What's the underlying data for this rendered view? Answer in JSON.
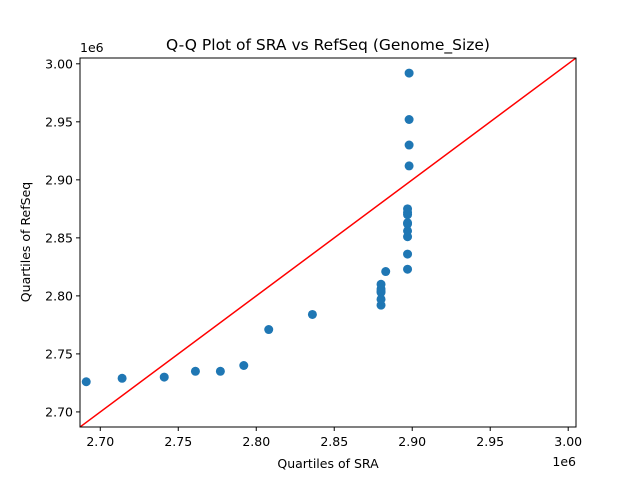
{
  "chart_data": {
    "type": "scatter",
    "title": "Q-Q Plot of SRA vs RefSeq (Genome_Size)",
    "xlabel": "Quartiles of SRA",
    "ylabel": "Quartiles of RefSeq",
    "x_offset_label": "1e6",
    "y_offset_label": "1e6",
    "xlim": [
      2.687,
      3.005
    ],
    "ylim": [
      2.687,
      3.005
    ],
    "x_ticks": [
      2.7,
      2.75,
      2.8,
      2.85,
      2.9,
      2.95,
      3.0
    ],
    "x_tick_labels": [
      "2.70",
      "2.75",
      "2.80",
      "2.85",
      "2.90",
      "2.95",
      "3.00"
    ],
    "y_ticks": [
      2.7,
      2.75,
      2.8,
      2.85,
      2.9,
      2.95,
      3.0
    ],
    "y_tick_labels": [
      "2.70",
      "2.75",
      "2.80",
      "2.85",
      "2.90",
      "2.95",
      "3.00"
    ],
    "grid": false,
    "marker_color": "#1f77b4",
    "reference_line": {
      "color": "#ff0000",
      "from": [
        2.687,
        2.687
      ],
      "to": [
        3.005,
        3.005
      ]
    },
    "series": [
      {
        "x": [
          2.691,
          2.714,
          2.741,
          2.761,
          2.777,
          2.792,
          2.808,
          2.836,
          2.88,
          2.88,
          2.88,
          2.88,
          2.88,
          2.88,
          2.883,
          2.897,
          2.897,
          2.897,
          2.897,
          2.897,
          2.897,
          2.897,
          2.897,
          2.897,
          2.898,
          2.898,
          2.898,
          2.898
        ],
        "y": [
          2.726,
          2.729,
          2.73,
          2.735,
          2.735,
          2.74,
          2.771,
          2.784,
          2.792,
          2.797,
          2.803,
          2.806,
          2.81,
          2.804,
          2.821,
          2.823,
          2.836,
          2.851,
          2.856,
          2.862,
          2.863,
          2.87,
          2.875,
          2.872,
          2.912,
          2.93,
          2.952,
          2.992
        ]
      }
    ]
  }
}
